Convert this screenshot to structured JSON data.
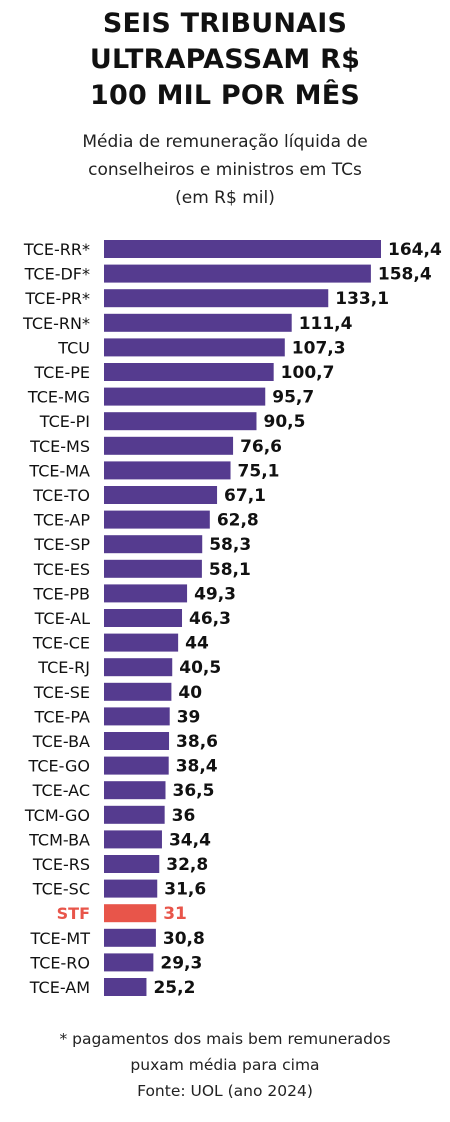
{
  "title_lines": [
    "SEIS TRIBUNAIS",
    "ULTRAPASSAM R$",
    "100 MIL POR MÊS"
  ],
  "subtitle_lines": [
    "Média de remuneração líquida de",
    "conselheiros e ministros em TCs",
    "(em R$ mil)"
  ],
  "footnote_lines": [
    "* pagamentos dos mais bem remunerados",
    "puxam média para cima",
    "Fonte: UOL (ano 2024)"
  ],
  "colors": {
    "bar": "#553b8f",
    "highlight": "#e8554a",
    "text": "#111111"
  },
  "chart_data": {
    "type": "bar",
    "orientation": "horizontal",
    "categories": [
      "TCE-RR*",
      "TCE-DF*",
      "TCE-PR*",
      "TCE-RN*",
      "TCU",
      "TCE-PE",
      "TCE-MG",
      "TCE-PI",
      "TCE-MS",
      "TCE-MA",
      "TCE-TO",
      "TCE-AP",
      "TCE-SP",
      "TCE-ES",
      "TCE-PB",
      "TCE-AL",
      "TCE-CE",
      "TCE-RJ",
      "TCE-SE",
      "TCE-PA",
      "TCE-BA",
      "TCE-GO",
      "TCE-AC",
      "TCM-GO",
      "TCM-BA",
      "TCE-RS",
      "TCE-SC",
      "STF",
      "TCE-MT",
      "TCE-RO",
      "TCE-AM"
    ],
    "values": [
      164.4,
      158.4,
      133.1,
      111.4,
      107.3,
      100.7,
      95.7,
      90.5,
      76.6,
      75.1,
      67.1,
      62.8,
      58.3,
      58.1,
      49.3,
      46.3,
      44,
      40.5,
      40,
      39,
      38.6,
      38.4,
      36.5,
      36,
      34.4,
      32.8,
      31.6,
      31,
      30.8,
      29.3,
      25.2
    ],
    "value_labels": [
      "164,4",
      "158,4",
      "133,1",
      "111,4",
      "107,3",
      "100,7",
      "95,7",
      "90,5",
      "76,6",
      "75,1",
      "67,1",
      "62,8",
      "58,3",
      "58,1",
      "49,3",
      "46,3",
      "44",
      "40,5",
      "40",
      "39",
      "38,6",
      "38,4",
      "36,5",
      "36",
      "34,4",
      "32,8",
      "31,6",
      "31",
      "30,8",
      "29,3",
      "25,2"
    ],
    "highlighted_category": "STF",
    "grid": false,
    "legend": "none"
  }
}
